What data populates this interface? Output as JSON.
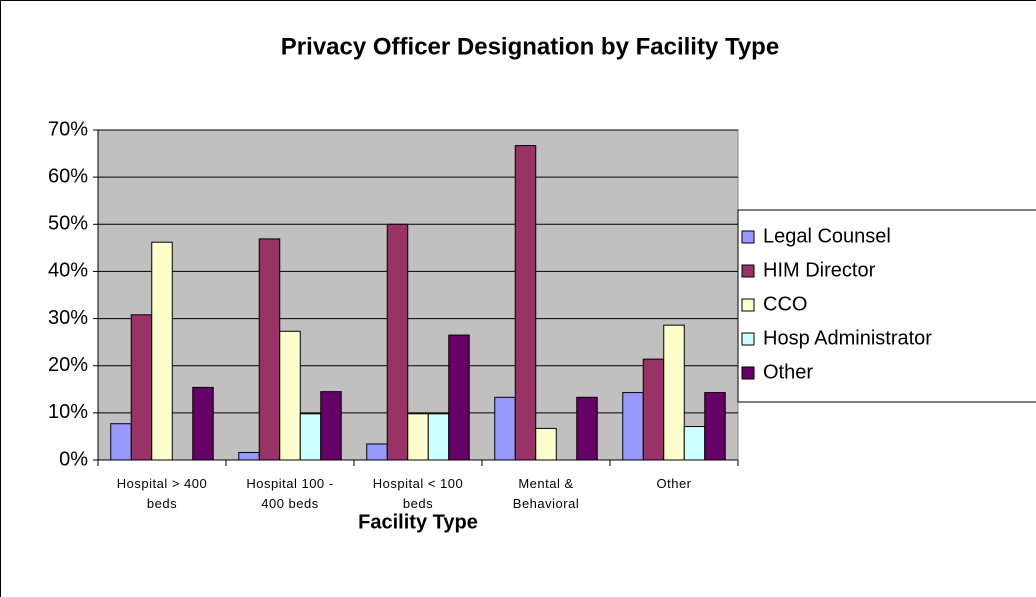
{
  "chart_data": {
    "type": "bar",
    "title": "Privacy Officer Designation by Facility Type",
    "x_label": "Facility Type",
    "categories": [
      "Hospital > 400 beds",
      "Hospital 100 - 400 beds",
      "Hospital < 100 beds",
      "Mental & Behavioral",
      "Other"
    ],
    "series": [
      {
        "name": "Legal Counsel",
        "color": "#9999ff",
        "values": [
          7.7,
          1.6,
          3.4,
          13.3,
          14.3
        ]
      },
      {
        "name": "HIM Director",
        "color": "#993366",
        "values": [
          30.8,
          46.9,
          50,
          66.7,
          21.4
        ]
      },
      {
        "name": "CCO",
        "color": "#ffffcc",
        "values": [
          46.2,
          27.3,
          9.8,
          6.7,
          28.6
        ]
      },
      {
        "name": "Hosp Administrator",
        "color": "#ccffff",
        "values": [
          0,
          9.8,
          9.8,
          0,
          7.1
        ]
      },
      {
        "name": "Other",
        "color": "#660066",
        "values": [
          15.4,
          14.5,
          26.5,
          13.3,
          14.3
        ]
      }
    ],
    "ylim": [
      0,
      70
    ],
    "yticks": [
      {
        "value": 0,
        "label": "0%"
      },
      {
        "value": 10,
        "label": "10%"
      },
      {
        "value": 20,
        "label": "20%"
      },
      {
        "value": 30,
        "label": "30%"
      },
      {
        "value": 40,
        "label": "40%"
      },
      {
        "value": 50,
        "label": "50%"
      },
      {
        "value": 60,
        "label": "60%"
      },
      {
        "value": 70,
        "label": "70%"
      }
    ],
    "grid": true,
    "legend": "right"
  }
}
